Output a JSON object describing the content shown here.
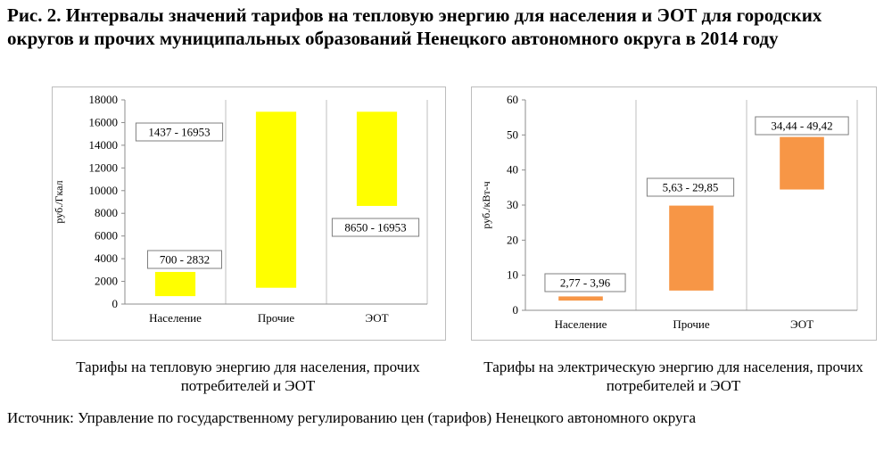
{
  "title": "Рис. 2. Интервалы значений тарифов на тепловую энергию для населения и ЭОТ для городских округов и прочих муниципальных образований Ненецкого автономного округа в 2014 году",
  "chart_data": [
    {
      "type": "bar",
      "subtype": "floating-range",
      "categories": [
        "Население",
        "Прочие",
        "ЭОТ"
      ],
      "series": [
        {
          "ranges": [
            [
              700,
              2832
            ],
            [
              1437,
              16953
            ],
            [
              8650,
              16953
            ]
          ]
        }
      ],
      "data_labels": [
        "700 - 2832",
        "1437 - 16953",
        "8650 - 16953"
      ],
      "ylabel": "руб./Гкал",
      "ylim": [
        0,
        18000
      ],
      "yticks": [
        0,
        2000,
        4000,
        6000,
        8000,
        10000,
        12000,
        14000,
        16000,
        18000
      ],
      "ytick_labels": [
        "0",
        "2000",
        "4000",
        "6000",
        "8000",
        "10000",
        "12000",
        "14000",
        "16000",
        "18000"
      ],
      "grid": "vertical",
      "bar_color": "#ffff00",
      "caption": "Тарифы на тепловую энергию для населения, прочих потребителей и ЭОТ"
    },
    {
      "type": "bar",
      "subtype": "floating-range",
      "categories": [
        "Население",
        "Прочие",
        "ЭОТ"
      ],
      "series": [
        {
          "ranges": [
            [
              2.77,
              3.96
            ],
            [
              5.63,
              29.85
            ],
            [
              34.44,
              49.42
            ]
          ]
        }
      ],
      "data_labels": [
        "2,77 - 3,96",
        "5,63 - 29,85",
        "34,44 - 49,42"
      ],
      "ylabel": "руб./кВт-ч",
      "ylim": [
        0,
        60
      ],
      "yticks": [
        0,
        10,
        20,
        30,
        40,
        50,
        60
      ],
      "ytick_labels": [
        "0",
        "10",
        "20",
        "30",
        "40",
        "50",
        "60"
      ],
      "grid": "vertical",
      "bar_color": "#f79646",
      "caption": "Тарифы на электрическую энергию для населения, прочих потребителей и ЭОТ"
    }
  ],
  "source": "Источник: Управление по государственному регулированию цен (тарифов) Ненецкого автономного округа"
}
